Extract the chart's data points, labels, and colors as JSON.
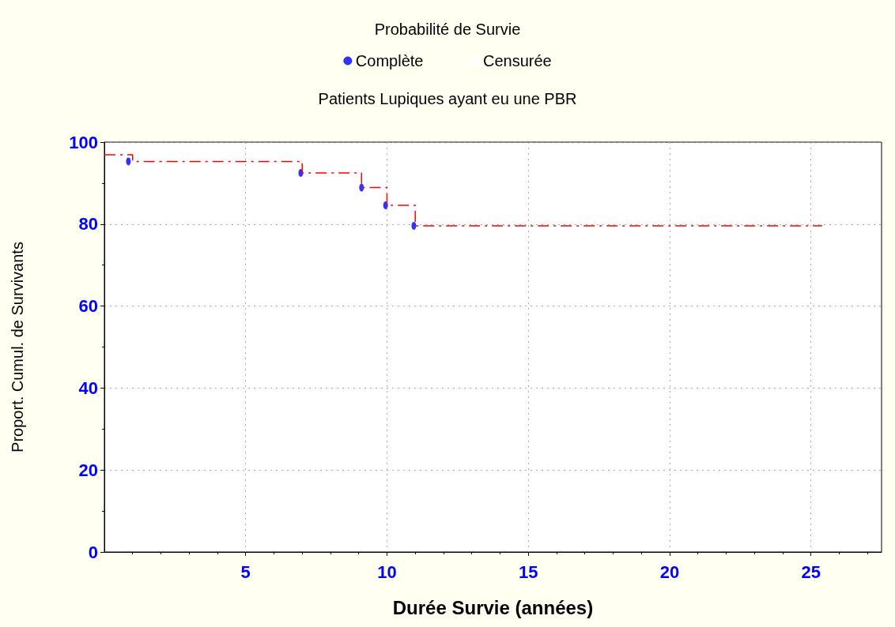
{
  "chart_data": {
    "type": "step",
    "title": "Probabilité de Survie",
    "subtitle": "Patients Lupiques ayant eu une PBR",
    "xlabel": "Durée Survie (années)",
    "ylabel": "Proport. Cumul. de Survivants",
    "series": [
      {
        "marker": "none",
        "color": "#ff0000",
        "x": [
          0,
          1,
          7,
          9.1,
          10,
          11,
          25.4
        ],
        "values": [
          96.9,
          95.3,
          92.5,
          88.9,
          84.6,
          79.6,
          79.6
        ]
      },
      {
        "type": "scatter",
        "marker": "circle",
        "name": "Complète",
        "color": "#0000ff",
        "x": [
          0.85,
          6.95,
          9.1,
          9.95,
          10.95
        ],
        "values": [
          95.3,
          92.5,
          88.9,
          84.6,
          79.6
        ]
      },
      {
        "type": "scatter",
        "name": "Censurée",
        "marker": "square",
        "color": "#ffffff"
      }
    ],
    "xlim": [
      0,
      27.5
    ],
    "xticks": [
      5,
      10,
      15,
      20,
      25
    ],
    "ylim": [
      0,
      100
    ],
    "yticks": [
      0,
      20,
      40,
      60,
      80,
      100
    ],
    "grid": true,
    "legend": "top",
    "line_style": "dashed"
  }
}
